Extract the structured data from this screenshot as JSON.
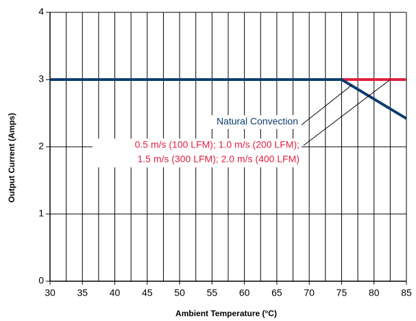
{
  "chart_data": {
    "type": "line",
    "xlabel": "Ambient Temperature (°C)",
    "ylabel": "Output Current (Amps)",
    "xlim": [
      30,
      85
    ],
    "ylim": [
      0,
      4
    ],
    "xticks": [
      30,
      35,
      40,
      45,
      50,
      55,
      60,
      65,
      70,
      75,
      80,
      85
    ],
    "xminorticks": [
      32.5,
      37.5,
      42.5,
      47.5,
      52.5,
      57.5,
      62.5,
      67.5,
      72.5,
      77.5,
      82.5
    ],
    "yticks": [
      0,
      1,
      2,
      3,
      4
    ],
    "grid": true,
    "series": [
      {
        "name": [
          "0.5 m/s (100 LFM); 1.0 m/s (200 LFM);",
          "1.5 m/s (300 LFM); 2.0 m/s (400 LFM)"
        ],
        "color": "#e0213f",
        "x": [
          30,
          85
        ],
        "values": [
          3,
          3
        ]
      },
      {
        "name": [
          "Natural Convection"
        ],
        "color": "#0b3c6e",
        "x": [
          30,
          75,
          85
        ],
        "values": [
          3,
          3,
          2.42
        ]
      }
    ]
  }
}
